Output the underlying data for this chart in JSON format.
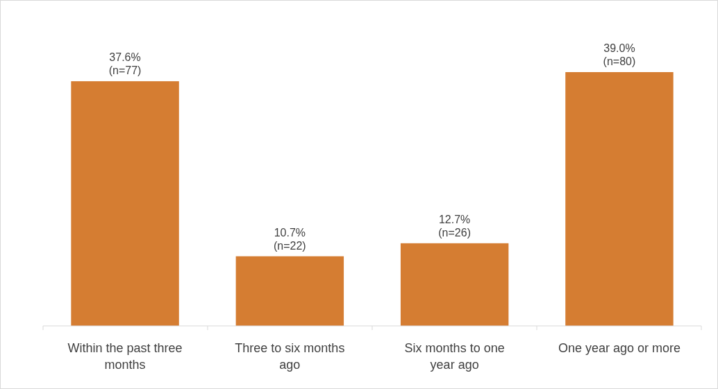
{
  "chart_data": {
    "type": "bar",
    "categories": [
      "Within the past three months",
      "Three to six months ago",
      "Six months to one year ago",
      "One year ago or more"
    ],
    "values": [
      37.6,
      10.7,
      12.7,
      39.0
    ],
    "color": "#d57d32",
    "value_labels": [
      "37.6%\n(n=77)",
      "10.7%\n(n=22)",
      "12.7%\n(n=26)",
      "39.0%\n(n=80)"
    ]
  }
}
